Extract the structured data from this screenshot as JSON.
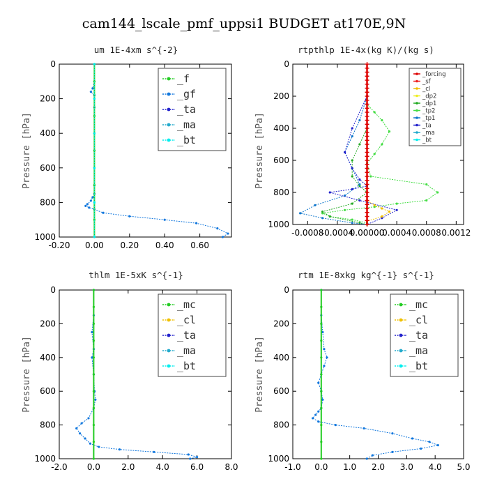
{
  "figure": {
    "title": "cam144_lscale_pmf_uppsi1  BUDGET at170E,9N"
  },
  "colors": {
    "forcing": "#dd0000",
    "sf": "#ee2222",
    "cl": "#f0c000",
    "dp2": "#eeee22",
    "dp1": "#22aa22",
    "tp2": "#44dd44",
    "tp1": "#1177cc",
    "ta": "#2222cc",
    "ma": "#22aacc",
    "bt": "#00eeee",
    "green": "#22cc22",
    "blue": "#1177dd"
  },
  "chart_data": [
    {
      "type": "line",
      "title": "um   1E-4xm s^{-2}",
      "ylabel": "Pressure [hPa]",
      "xlim": [
        -0.2,
        0.78
      ],
      "ylim": [
        1000,
        0
      ],
      "xticks": [
        -0.2,
        0.0,
        0.2,
        0.4,
        0.6
      ],
      "xtick_labels": [
        "-0.20",
        "0.00",
        "0.20",
        "0.40",
        "0.60"
      ],
      "yticks": [
        0,
        200,
        400,
        600,
        800,
        1000
      ],
      "legend": [
        "_f",
        "_gf",
        "_ta",
        "_ma",
        "_bt"
      ],
      "legend_style": "big",
      "legend_placement": "top-right",
      "series": [
        {
          "name": "_gf",
          "color": "#1177dd",
          "x": [
            0.0,
            0.0,
            -0.01,
            -0.02,
            0.0,
            0.0,
            0.0,
            0.0,
            0.0,
            0.0,
            0.0,
            -0.01,
            -0.02,
            -0.04,
            -0.05,
            -0.03,
            0.0,
            0.05,
            0.2,
            0.4,
            0.58,
            0.7,
            0.76,
            0.73
          ],
          "y": [
            0,
            100,
            140,
            160,
            180,
            250,
            400,
            500,
            600,
            700,
            750,
            770,
            790,
            810,
            820,
            830,
            840,
            860,
            880,
            900,
            920,
            950,
            980,
            1000
          ]
        },
        {
          "name": "_f",
          "color": "#22cc22",
          "x": [
            0,
            0,
            0,
            0,
            0,
            0,
            0,
            0,
            0,
            0,
            0
          ],
          "y": [
            0,
            100,
            200,
            300,
            400,
            500,
            600,
            700,
            800,
            900,
            1000
          ]
        },
        {
          "name": "_bt",
          "color": "#00eeee",
          "x": [
            0,
            0,
            0,
            0,
            0,
            0
          ],
          "y": [
            0,
            200,
            400,
            600,
            800,
            1000
          ]
        }
      ]
    },
    {
      "type": "line",
      "title": "rtpthlp   1E-4x(kg K)/(kg s)",
      "ylabel": "Pressure [hPa]",
      "xlim": [
        -0.001,
        0.0013
      ],
      "ylim": [
        1000,
        0
      ],
      "xticks": [
        -0.0008,
        -0.0004,
        0.0,
        0.0004,
        0.0008,
        0.0012
      ],
      "xtick_labels": [
        "-0.0008",
        "-0.0004",
        "0.00000",
        "0.0004",
        "0.0008",
        "0.0012"
      ],
      "yticks": [
        0,
        200,
        400,
        600,
        800,
        1000
      ],
      "legend": [
        "_forcing",
        "_sf",
        "_cl",
        "_dp2",
        "_dp1",
        "_tp2",
        "_tp1",
        "_ta",
        "_ma",
        "_bt"
      ],
      "legend_style": "small",
      "legend_placement": "top-right",
      "series": [
        {
          "name": "_tp2",
          "color": "#44dd44",
          "x": [
            0.0,
            0.0,
            0.0001,
            0.0002,
            0.0003,
            0.0002,
            0.0001,
            0.0,
            5e-05,
            0.0008,
            0.00095,
            0.0008,
            0.0004,
            0.0001,
            -0.0003,
            -0.0006,
            -0.0005,
            -0.0002,
            0.0,
            0.0
          ],
          "y": [
            200,
            250,
            300,
            350,
            420,
            500,
            560,
            620,
            700,
            750,
            800,
            850,
            870,
            890,
            910,
            930,
            950,
            970,
            990,
            1000
          ]
        },
        {
          "name": "_dp1",
          "color": "#22aa22",
          "x": [
            0.0,
            -0.0001,
            -0.0002,
            -0.0002,
            -0.0001,
            0.0,
            -0.0002,
            -0.0006,
            -0.0005,
            -0.0001,
            0.0
          ],
          "y": [
            400,
            500,
            600,
            700,
            760,
            800,
            870,
            920,
            950,
            990,
            1000
          ]
        },
        {
          "name": "_tp1",
          "color": "#1177cc",
          "x": [
            0.0,
            -0.0001,
            -0.0002,
            -0.0003,
            -0.0002,
            -0.0001,
            -0.0003,
            -0.0007,
            -0.0009,
            -0.0006,
            -0.0002,
            0.0
          ],
          "y": [
            200,
            350,
            450,
            550,
            650,
            750,
            820,
            880,
            930,
            960,
            990,
            1000
          ]
        },
        {
          "name": "_ta",
          "color": "#2222cc",
          "x": [
            0.0,
            -0.0002,
            -0.0003,
            -0.0002,
            -0.0001,
            0.0,
            -0.0002,
            -0.0005,
            -0.0001,
            0.0004,
            0.0002,
            0.0
          ],
          "y": [
            200,
            400,
            550,
            650,
            720,
            760,
            780,
            800,
            850,
            910,
            960,
            1000
          ]
        },
        {
          "name": "_cl",
          "color": "#f0c000",
          "x": [
            0,
            0,
            0,
            0.0001,
            0.0002,
            0.0003,
            0.0002,
            0.0,
            0.0
          ],
          "y": [
            700,
            800,
            850,
            880,
            900,
            920,
            950,
            980,
            1000
          ]
        },
        {
          "name": "_forcing",
          "color": "#dd0000",
          "x": [
            0,
            0,
            0,
            0,
            0,
            0,
            0,
            0,
            0,
            0,
            0,
            0,
            0,
            0,
            0,
            0,
            0,
            0,
            0,
            0,
            0,
            0,
            0,
            0,
            0,
            0,
            0,
            0,
            0,
            0,
            0,
            0,
            0,
            0,
            0,
            0,
            0,
            0,
            0,
            0,
            0
          ],
          "y": [
            0,
            25,
            50,
            75,
            100,
            125,
            150,
            175,
            200,
            225,
            250,
            275,
            300,
            325,
            350,
            375,
            400,
            425,
            450,
            475,
            500,
            525,
            550,
            575,
            600,
            625,
            650,
            675,
            700,
            725,
            750,
            775,
            800,
            825,
            850,
            875,
            900,
            925,
            950,
            975,
            1000
          ]
        }
      ]
    },
    {
      "type": "line",
      "title": "thlm   1E-5xK s^{-1}",
      "ylabel": "Pressure [hPa]",
      "xlim": [
        -2.0,
        8.0
      ],
      "ylim": [
        1000,
        0
      ],
      "xticks": [
        -2.0,
        0.0,
        2.0,
        4.0,
        6.0,
        8.0
      ],
      "xtick_labels": [
        "-2.0",
        "0.0",
        "2.0",
        "4.0",
        "6.0",
        "8.0"
      ],
      "yticks": [
        0,
        200,
        400,
        600,
        800,
        1000
      ],
      "legend": [
        "_mc",
        "_cl",
        "_ta",
        "_ma",
        "_bt"
      ],
      "legend_style": "big",
      "legend_placement": "top-right",
      "series": [
        {
          "name": "_cl",
          "color": "#1177dd",
          "x": [
            0.0,
            0.0,
            -0.1,
            0.0,
            -0.1,
            0.0,
            0.05,
            0.1,
            0.0,
            -0.3,
            -0.7,
            -1.0,
            -0.8,
            -0.5,
            -0.2,
            0.3,
            1.5,
            3.5,
            5.5,
            6.0,
            5.6
          ],
          "y": [
            0,
            150,
            250,
            350,
            400,
            500,
            600,
            650,
            700,
            760,
            790,
            820,
            850,
            880,
            910,
            930,
            945,
            960,
            975,
            990,
            1000
          ]
        },
        {
          "name": "_mc",
          "color": "#22cc22",
          "x": [
            0,
            0,
            0,
            0,
            0,
            0,
            0,
            0,
            0,
            0,
            0
          ],
          "y": [
            0,
            100,
            200,
            300,
            400,
            500,
            600,
            700,
            800,
            900,
            1000
          ]
        }
      ]
    },
    {
      "type": "line",
      "title": "rtm   1E-8xkg kg^{-1} s^{-1}",
      "ylabel": "Pressure [hPa]",
      "xlim": [
        -1.0,
        5.0
      ],
      "ylim": [
        1000,
        0
      ],
      "xticks": [
        -1.0,
        0.0,
        1.0,
        2.0,
        3.0,
        4.0,
        5.0
      ],
      "xtick_labels": [
        "-1.0",
        "0.0",
        "1.0",
        "2.0",
        "3.0",
        "4.0",
        "5.0"
      ],
      "yticks": [
        0,
        200,
        400,
        600,
        800,
        1000
      ],
      "legend": [
        "_mc",
        "_cl",
        "_ta",
        "_ma",
        "_bt"
      ],
      "legend_style": "big",
      "legend_placement": "top-right",
      "series": [
        {
          "name": "_cl",
          "color": "#1177dd",
          "x": [
            0.0,
            0.0,
            0.05,
            0.1,
            0.2,
            0.1,
            0.0,
            -0.1,
            0.0,
            0.05,
            0.0,
            -0.1,
            -0.2,
            -0.3,
            -0.1,
            0.5,
            1.5,
            2.5,
            3.2,
            3.8,
            4.1,
            3.5,
            2.5,
            1.8,
            1.6
          ],
          "y": [
            0,
            150,
            250,
            350,
            400,
            450,
            500,
            550,
            600,
            650,
            700,
            720,
            740,
            760,
            780,
            800,
            820,
            850,
            880,
            900,
            920,
            940,
            960,
            980,
            1000
          ]
        },
        {
          "name": "_mc",
          "color": "#22cc22",
          "x": [
            0,
            0,
            0,
            0,
            0,
            0,
            0,
            0,
            0,
            0,
            0
          ],
          "y": [
            0,
            100,
            200,
            300,
            400,
            500,
            600,
            700,
            800,
            900,
            1000
          ]
        }
      ]
    }
  ]
}
